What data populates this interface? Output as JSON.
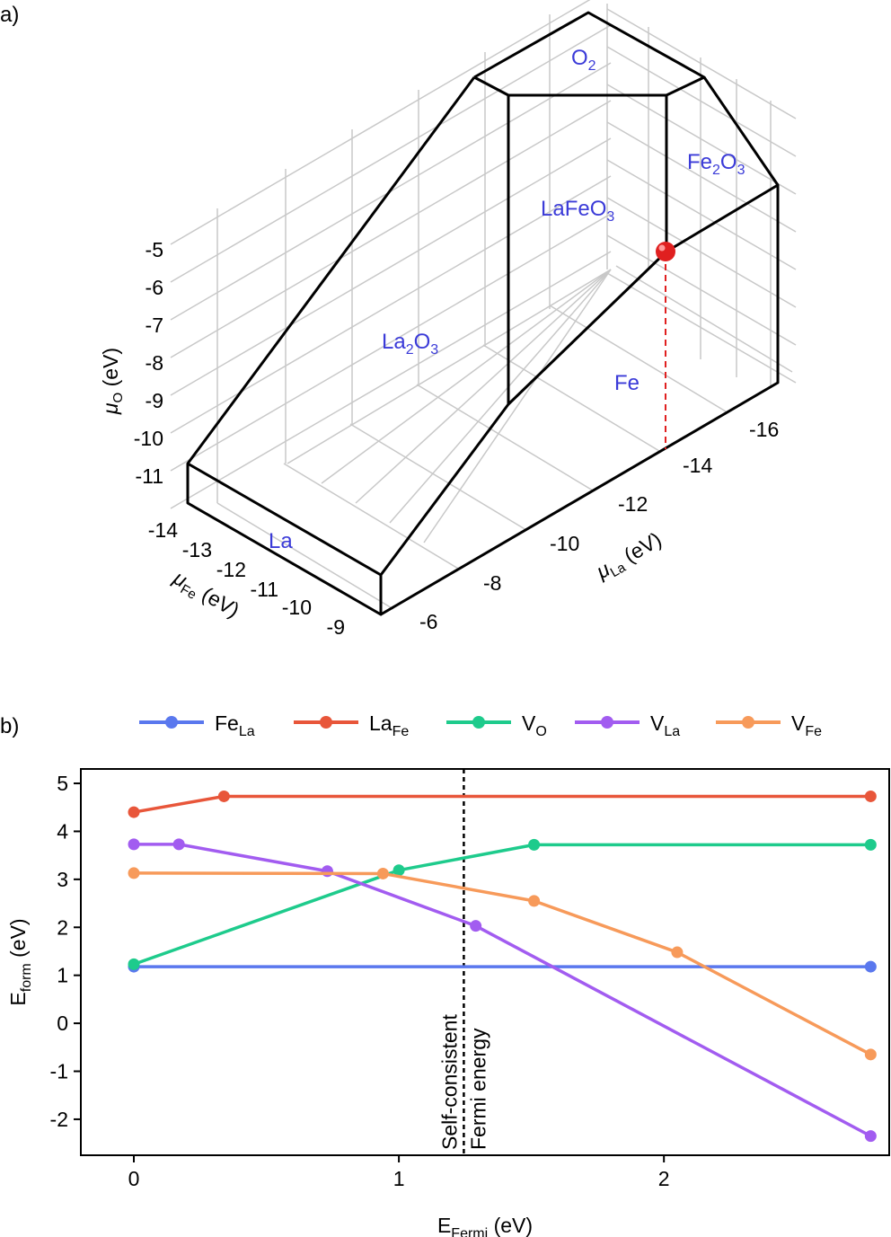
{
  "colors": {
    "region_label": "#3b3bd8",
    "grid": "#c8c8c8",
    "edge": "#000000",
    "marker": "#e02020",
    "FeLa": "#5a78ee",
    "LaFe": "#e8563a",
    "VO": "#1ecb8c",
    "VLa": "#a25cf0",
    "VFe": "#f79a5a"
  },
  "panel_a": {
    "label": "a)",
    "regions": {
      "O2": {
        "main": "O",
        "sub": "2",
        "tail": ""
      },
      "Fe2O3": {
        "main": "Fe",
        "sub": "2",
        "tail": "O",
        "sub2": "3"
      },
      "LaFeO3": {
        "main": "LaFeO",
        "sub": "3",
        "tail": ""
      },
      "La2O3": {
        "main": "La",
        "sub": "2",
        "tail": "O",
        "sub2": "3"
      },
      "Fe": "Fe",
      "La": "La"
    },
    "axis_O": {
      "symbol": "μ",
      "sub": "O",
      "unit": " (eV)",
      "ticks": [
        "-5",
        "-6",
        "-7",
        "-8",
        "-9",
        "-10",
        "-11"
      ]
    },
    "axis_Fe": {
      "symbol": "μ",
      "sub": "Fe",
      "unit": " (eV)",
      "ticks": [
        "-14",
        "-13",
        "-12",
        "-11",
        "-10",
        "-9"
      ]
    },
    "axis_La": {
      "symbol": "μ",
      "sub": "La",
      "unit": " (eV)",
      "ticks": [
        "-6",
        "-8",
        "-10",
        "-12",
        "-14",
        "-16"
      ]
    }
  },
  "chart_data": {
    "type": "line",
    "panel_label": "b)",
    "xlabel": {
      "main": "E",
      "sub": "Fermi",
      "unit": " (eV)"
    },
    "ylabel": {
      "main": "E",
      "sub": "form",
      "unit": " (eV)"
    },
    "xlim": [
      -0.2,
      2.85
    ],
    "ylim": [
      -2.75,
      5.3
    ],
    "xticks": [
      0,
      1,
      2
    ],
    "yticks": [
      5,
      4,
      3,
      2,
      1,
      0,
      -1,
      -2
    ],
    "vline": {
      "x": 1.245,
      "label_line1": "Self-consistent",
      "label_line2": "Fermi energy"
    },
    "legend_position": "top, above plot",
    "series": [
      {
        "name": "Fe",
        "sub": "La",
        "color_key": "FeLa",
        "x": [
          0.0,
          2.78
        ],
        "y": [
          1.18,
          1.18
        ]
      },
      {
        "name": "La",
        "sub": "Fe",
        "color_key": "LaFe",
        "x": [
          0.0,
          0.34,
          2.78
        ],
        "y": [
          4.4,
          4.73,
          4.73
        ]
      },
      {
        "name": "V",
        "sub": "O",
        "color_key": "VO",
        "x": [
          0.0,
          1.0,
          1.51,
          2.78
        ],
        "y": [
          1.23,
          3.19,
          3.72,
          3.72
        ]
      },
      {
        "name": "V",
        "sub": "La",
        "color_key": "VLa",
        "x": [
          0.0,
          0.17,
          0.73,
          1.29,
          2.78
        ],
        "y": [
          3.73,
          3.73,
          3.17,
          2.03,
          -2.35
        ]
      },
      {
        "name": "V",
        "sub": "Fe",
        "color_key": "VFe",
        "x": [
          0.0,
          0.94,
          1.51,
          2.05,
          2.78
        ],
        "y": [
          3.13,
          3.12,
          2.55,
          1.48,
          -0.65
        ]
      }
    ]
  }
}
